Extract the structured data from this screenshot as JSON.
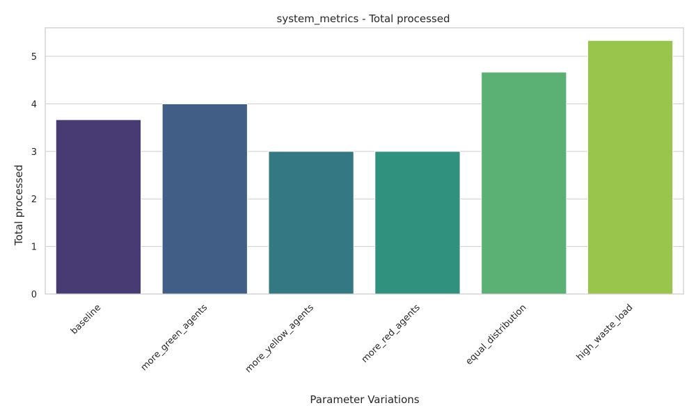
{
  "chart_data": {
    "type": "bar",
    "title": "system_metrics - Total processed",
    "xlabel": "Parameter Variations",
    "ylabel": "Total processed",
    "categories": [
      "baseline",
      "more_green_agents",
      "more_yellow_agents",
      "more_red_agents",
      "equal_distribution",
      "high_waste_load"
    ],
    "values": [
      3.667,
      4.0,
      3.0,
      3.0,
      4.667,
      5.333
    ],
    "colors": [
      "#483a73",
      "#415e86",
      "#337882",
      "#2f917e",
      "#5bb174",
      "#9ac54c"
    ],
    "ylim": [
      0,
      5.6
    ],
    "yticks": [
      0,
      1,
      2,
      3,
      4,
      5
    ],
    "grid": true,
    "legend": "none"
  }
}
